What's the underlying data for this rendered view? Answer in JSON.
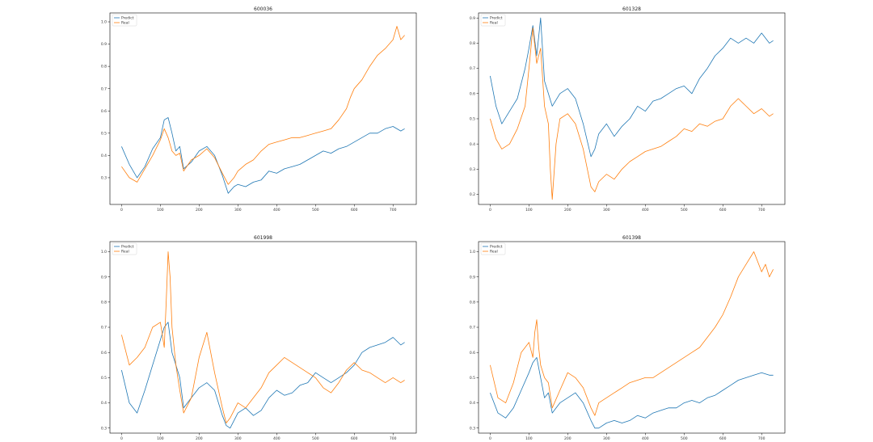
{
  "chart_data": [
    {
      "type": "line",
      "title": "600036",
      "xlim": [
        -30,
        760
      ],
      "ylim": [
        0.18,
        1.04
      ],
      "x_ticks": [
        "0",
        "100",
        "200",
        "300",
        "400",
        "500",
        "600",
        "700"
      ],
      "y_ticks": [
        "0.3",
        "0.4",
        "0.5",
        "0.6",
        "0.7",
        "0.8",
        "0.9",
        "1.0"
      ],
      "legend": "top-left",
      "grid": false,
      "series": [
        {
          "name": "Predict",
          "color": "#1f77b4",
          "x": [
            0,
            20,
            40,
            60,
            80,
            100,
            110,
            120,
            130,
            140,
            150,
            160,
            180,
            200,
            220,
            240,
            260,
            275,
            290,
            300,
            320,
            340,
            360,
            380,
            400,
            420,
            440,
            460,
            480,
            500,
            520,
            540,
            560,
            580,
            600,
            620,
            640,
            660,
            680,
            700,
            720,
            730
          ],
          "y": [
            0.44,
            0.36,
            0.3,
            0.35,
            0.43,
            0.48,
            0.56,
            0.57,
            0.5,
            0.42,
            0.44,
            0.34,
            0.37,
            0.42,
            0.44,
            0.4,
            0.31,
            0.23,
            0.26,
            0.27,
            0.26,
            0.28,
            0.29,
            0.33,
            0.32,
            0.34,
            0.35,
            0.36,
            0.38,
            0.4,
            0.42,
            0.41,
            0.43,
            0.44,
            0.46,
            0.48,
            0.5,
            0.5,
            0.52,
            0.53,
            0.51,
            0.52
          ]
        },
        {
          "name": "Real",
          "color": "#ff7f0e",
          "x": [
            0,
            20,
            40,
            60,
            80,
            100,
            110,
            120,
            130,
            140,
            150,
            160,
            180,
            200,
            220,
            240,
            260,
            275,
            290,
            300,
            320,
            340,
            360,
            380,
            400,
            420,
            440,
            460,
            480,
            500,
            520,
            540,
            560,
            580,
            590,
            600,
            620,
            640,
            660,
            680,
            700,
            710,
            720,
            730
          ],
          "y": [
            0.35,
            0.3,
            0.28,
            0.34,
            0.4,
            0.47,
            0.52,
            0.48,
            0.42,
            0.4,
            0.41,
            0.33,
            0.38,
            0.4,
            0.43,
            0.39,
            0.32,
            0.27,
            0.3,
            0.33,
            0.36,
            0.38,
            0.42,
            0.45,
            0.46,
            0.47,
            0.48,
            0.48,
            0.49,
            0.5,
            0.51,
            0.52,
            0.56,
            0.61,
            0.66,
            0.7,
            0.74,
            0.8,
            0.85,
            0.88,
            0.92,
            0.98,
            0.92,
            0.94
          ]
        }
      ]
    },
    {
      "type": "line",
      "title": "601328",
      "xlim": [
        -30,
        760
      ],
      "ylim": [
        0.16,
        0.92
      ],
      "x_ticks": [
        "0",
        "100",
        "200",
        "300",
        "400",
        "500",
        "600",
        "700"
      ],
      "y_ticks": [
        "0.2",
        "0.3",
        "0.4",
        "0.5",
        "0.6",
        "0.7",
        "0.8",
        "0.9"
      ],
      "legend": "top-left",
      "grid": false,
      "series": [
        {
          "name": "Predict",
          "color": "#1f77b4",
          "x": [
            0,
            15,
            30,
            50,
            70,
            90,
            100,
            110,
            120,
            130,
            140,
            150,
            160,
            180,
            200,
            220,
            240,
            260,
            270,
            280,
            300,
            320,
            340,
            360,
            380,
            400,
            420,
            440,
            460,
            480,
            500,
            520,
            540,
            560,
            580,
            600,
            620,
            640,
            660,
            680,
            700,
            720,
            730
          ],
          "y": [
            0.67,
            0.55,
            0.48,
            0.53,
            0.58,
            0.7,
            0.78,
            0.87,
            0.75,
            0.9,
            0.65,
            0.6,
            0.55,
            0.6,
            0.62,
            0.58,
            0.48,
            0.35,
            0.38,
            0.44,
            0.48,
            0.43,
            0.47,
            0.5,
            0.55,
            0.53,
            0.57,
            0.58,
            0.6,
            0.62,
            0.63,
            0.6,
            0.66,
            0.7,
            0.75,
            0.78,
            0.82,
            0.8,
            0.82,
            0.8,
            0.84,
            0.8,
            0.81
          ]
        },
        {
          "name": "Real",
          "color": "#ff7f0e",
          "x": [
            0,
            15,
            30,
            50,
            70,
            90,
            100,
            110,
            120,
            130,
            140,
            150,
            155,
            160,
            170,
            180,
            200,
            220,
            240,
            260,
            270,
            280,
            300,
            320,
            340,
            360,
            380,
            400,
            420,
            440,
            460,
            480,
            500,
            520,
            540,
            560,
            580,
            600,
            620,
            640,
            660,
            680,
            700,
            720,
            730
          ],
          "y": [
            0.5,
            0.42,
            0.38,
            0.4,
            0.46,
            0.55,
            0.7,
            0.86,
            0.72,
            0.78,
            0.55,
            0.48,
            0.3,
            0.18,
            0.4,
            0.5,
            0.52,
            0.48,
            0.38,
            0.23,
            0.21,
            0.25,
            0.28,
            0.26,
            0.3,
            0.33,
            0.35,
            0.37,
            0.38,
            0.39,
            0.41,
            0.43,
            0.46,
            0.45,
            0.48,
            0.47,
            0.49,
            0.5,
            0.55,
            0.58,
            0.55,
            0.52,
            0.54,
            0.51,
            0.52
          ]
        }
      ]
    },
    {
      "type": "line",
      "title": "601998",
      "xlim": [
        -30,
        760
      ],
      "ylim": [
        0.28,
        1.04
      ],
      "x_ticks": [
        "0",
        "100",
        "200",
        "300",
        "400",
        "500",
        "600",
        "700"
      ],
      "y_ticks": [
        "0.3",
        "0.4",
        "0.5",
        "0.6",
        "0.7",
        "0.8",
        "0.9",
        "1.0"
      ],
      "legend": "top-left",
      "grid": false,
      "series": [
        {
          "name": "Predict",
          "color": "#1f77b4",
          "x": [
            0,
            20,
            40,
            60,
            80,
            100,
            110,
            120,
            130,
            140,
            150,
            160,
            180,
            200,
            220,
            240,
            260,
            270,
            280,
            300,
            320,
            340,
            360,
            380,
            400,
            420,
            440,
            460,
            480,
            500,
            520,
            540,
            560,
            580,
            600,
            620,
            640,
            660,
            680,
            700,
            720,
            730
          ],
          "y": [
            0.53,
            0.4,
            0.36,
            0.45,
            0.55,
            0.65,
            0.7,
            0.72,
            0.6,
            0.55,
            0.5,
            0.38,
            0.42,
            0.46,
            0.48,
            0.45,
            0.35,
            0.31,
            0.3,
            0.36,
            0.38,
            0.35,
            0.37,
            0.42,
            0.45,
            0.43,
            0.44,
            0.47,
            0.48,
            0.52,
            0.5,
            0.48,
            0.5,
            0.52,
            0.55,
            0.6,
            0.62,
            0.63,
            0.64,
            0.66,
            0.63,
            0.64
          ]
        },
        {
          "name": "Real",
          "color": "#ff7f0e",
          "x": [
            0,
            20,
            40,
            60,
            80,
            100,
            110,
            115,
            120,
            125,
            130,
            140,
            150,
            160,
            180,
            200,
            220,
            240,
            260,
            270,
            280,
            300,
            320,
            340,
            360,
            380,
            400,
            420,
            440,
            460,
            480,
            500,
            520,
            540,
            560,
            580,
            600,
            620,
            640,
            660,
            680,
            700,
            720,
            730
          ],
          "y": [
            0.67,
            0.55,
            0.58,
            0.62,
            0.7,
            0.72,
            0.62,
            0.8,
            1.0,
            0.9,
            0.7,
            0.55,
            0.45,
            0.36,
            0.42,
            0.58,
            0.68,
            0.52,
            0.38,
            0.32,
            0.34,
            0.4,
            0.38,
            0.42,
            0.46,
            0.52,
            0.55,
            0.58,
            0.56,
            0.54,
            0.52,
            0.5,
            0.46,
            0.44,
            0.48,
            0.53,
            0.56,
            0.53,
            0.52,
            0.5,
            0.48,
            0.5,
            0.48,
            0.49
          ]
        }
      ]
    },
    {
      "type": "line",
      "title": "601398",
      "xlim": [
        -30,
        760
      ],
      "ylim": [
        0.28,
        1.04
      ],
      "x_ticks": [
        "0",
        "100",
        "200",
        "300",
        "400",
        "500",
        "600",
        "700"
      ],
      "y_ticks": [
        "0.3",
        "0.4",
        "0.5",
        "0.6",
        "0.7",
        "0.8",
        "0.9",
        "1.0"
      ],
      "legend": "top-left",
      "grid": false,
      "series": [
        {
          "name": "Predict",
          "color": "#1f77b4",
          "x": [
            0,
            20,
            40,
            60,
            80,
            100,
            110,
            120,
            130,
            140,
            150,
            160,
            180,
            200,
            220,
            240,
            260,
            270,
            280,
            300,
            320,
            340,
            360,
            380,
            400,
            420,
            440,
            460,
            480,
            500,
            520,
            540,
            560,
            580,
            600,
            620,
            640,
            660,
            680,
            700,
            720,
            730
          ],
          "y": [
            0.44,
            0.36,
            0.34,
            0.38,
            0.45,
            0.52,
            0.56,
            0.58,
            0.5,
            0.42,
            0.44,
            0.36,
            0.4,
            0.42,
            0.44,
            0.4,
            0.33,
            0.3,
            0.3,
            0.32,
            0.33,
            0.32,
            0.33,
            0.35,
            0.34,
            0.36,
            0.37,
            0.38,
            0.38,
            0.4,
            0.41,
            0.4,
            0.42,
            0.43,
            0.45,
            0.47,
            0.49,
            0.5,
            0.51,
            0.52,
            0.51,
            0.51
          ]
        },
        {
          "name": "Real",
          "color": "#ff7f0e",
          "x": [
            0,
            20,
            40,
            60,
            80,
            100,
            110,
            115,
            120,
            125,
            130,
            140,
            150,
            160,
            180,
            200,
            220,
            240,
            260,
            270,
            280,
            300,
            320,
            340,
            360,
            380,
            400,
            420,
            440,
            460,
            480,
            500,
            520,
            540,
            560,
            580,
            600,
            620,
            640,
            660,
            680,
            690,
            700,
            710,
            720,
            730
          ],
          "y": [
            0.55,
            0.42,
            0.4,
            0.48,
            0.6,
            0.64,
            0.58,
            0.68,
            0.73,
            0.62,
            0.55,
            0.5,
            0.48,
            0.38,
            0.45,
            0.52,
            0.5,
            0.46,
            0.38,
            0.35,
            0.4,
            0.42,
            0.44,
            0.46,
            0.48,
            0.49,
            0.5,
            0.5,
            0.52,
            0.54,
            0.56,
            0.58,
            0.6,
            0.62,
            0.66,
            0.7,
            0.75,
            0.82,
            0.9,
            0.95,
            1.0,
            0.96,
            0.92,
            0.95,
            0.9,
            0.93
          ]
        }
      ]
    }
  ]
}
